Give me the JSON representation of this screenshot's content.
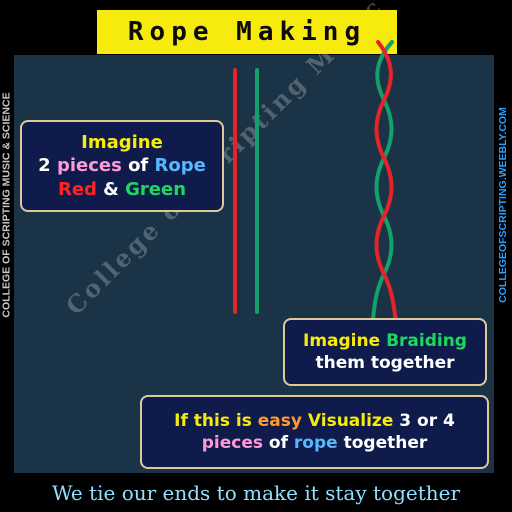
{
  "title": "Rope Making",
  "side_left": "COLLEGE OF SCRIPTING MUSIC & SCIENCE",
  "side_right": "COLLEGEOFSCRIPTING.WEEBLY.COM",
  "watermark": "College of Scripting Music and Science",
  "box1": {
    "line1": "Imagine",
    "line2_a": "2 ",
    "line2_b": "pieces",
    "line2_c": " of ",
    "line2_d": "Rope",
    "line3_a": "Red",
    "line3_b": " & ",
    "line3_c": "Green"
  },
  "box2": {
    "line1_a": "Imagine ",
    "line1_b": "Braiding",
    "line2": "them together"
  },
  "box3": {
    "line1_a": "If this is ",
    "line1_b": "easy",
    "line1_c": " Visualize",
    "line1_d": " 3 or 4",
    "line2_a": "pieces",
    "line2_b": " of ",
    "line2_c": "rope",
    "line2_d": " together"
  },
  "bottom_caption": "We tie our ends to make it stay together",
  "colors": {
    "rope_red": "#e4232b",
    "rope_green": "#14a06a",
    "title_bg": "#f7ea0d",
    "panel_bg": "#1b3346"
  }
}
